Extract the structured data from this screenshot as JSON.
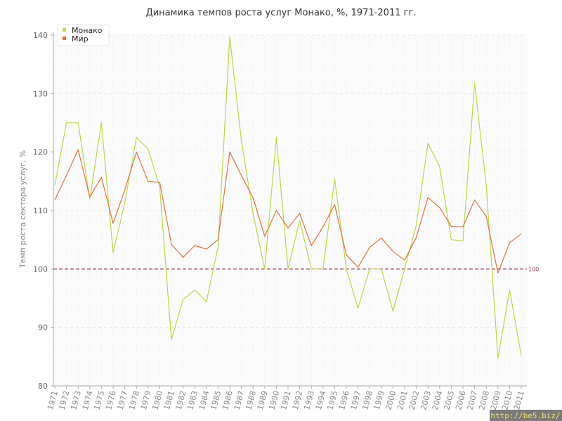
{
  "chart_data": {
    "type": "line",
    "title": "Динамика темпов роста услуг Монако, %, 1971-2011 гг.",
    "ylabel": "Темп роста сектора услуг, %",
    "xlabel": "",
    "ylim": [
      80,
      140
    ],
    "yticks": [
      80,
      90,
      100,
      110,
      120,
      130,
      140
    ],
    "x": [
      "1971",
      "1972",
      "1973",
      "1974",
      "1975",
      "1976",
      "1977",
      "1978",
      "1979",
      "1980",
      "1981",
      "1982",
      "1983",
      "1984",
      "1985",
      "1986",
      "1987",
      "1988",
      "1989",
      "1990",
      "1991",
      "1992",
      "1993",
      "1994",
      "1995",
      "1996",
      "1997",
      "1998",
      "1999",
      "2000",
      "2001",
      "2002",
      "2003",
      "2004",
      "2005",
      "2006",
      "2007",
      "2008",
      "2009",
      "2010",
      "2011"
    ],
    "series": [
      {
        "name": "Монако",
        "color": "#b8d943",
        "values": [
          114.3,
          125.0,
          125.0,
          112.0,
          125.0,
          102.8,
          111.3,
          122.5,
          120.5,
          114.0,
          87.9,
          94.8,
          96.4,
          94.4,
          103.8,
          139.7,
          122.0,
          109.5,
          100.0,
          122.5,
          100.0,
          108.3,
          100.0,
          100.0,
          115.4,
          100.0,
          93.3,
          100.0,
          100.0,
          92.8,
          100.0,
          107.5,
          121.5,
          117.5,
          105.0,
          104.8,
          131.8,
          114.3,
          84.7,
          96.4,
          85.2
        ]
      },
      {
        "name": "Мир",
        "color": "#e07040",
        "values": [
          111.8,
          116.0,
          120.4,
          112.3,
          115.7,
          107.8,
          113.5,
          120.0,
          115.0,
          114.8,
          104.2,
          102.0,
          104.0,
          103.4,
          105.0,
          120.0,
          116.0,
          112.2,
          105.6,
          110.0,
          107.0,
          109.5,
          104.0,
          107.2,
          111.0,
          102.4,
          100.3,
          103.7,
          105.3,
          103.0,
          101.5,
          105.4,
          112.2,
          110.5,
          107.3,
          107.2,
          111.8,
          109.0,
          99.3,
          104.5,
          106.0
        ]
      }
    ],
    "reference_line": {
      "value": 100,
      "label": "100",
      "color": "#8b3a52"
    },
    "grid": true,
    "legend_position": "top-left"
  },
  "watermark": "http://be5.biz/"
}
